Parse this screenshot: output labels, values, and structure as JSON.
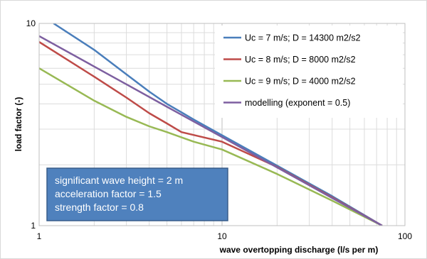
{
  "chart_data": {
    "type": "line",
    "xscale": "log",
    "yscale": "log",
    "xlim": [
      1,
      100
    ],
    "ylim": [
      1,
      10
    ],
    "xlabel": "wave overtopping discharge (l/s per m)",
    "ylabel": "load factor (-)",
    "xticks": [
      "1",
      "10",
      "100"
    ],
    "yticks": [
      "1",
      "10"
    ],
    "grid": true,
    "legend_position": "top-right",
    "series": [
      {
        "name": "Uc = 7 m/s; D = 14300 m2/s2",
        "color": "#4a7ebb",
        "points": [
          [
            1.2,
            10
          ],
          [
            2,
            7.4
          ],
          [
            3,
            5.6
          ],
          [
            4,
            4.6
          ],
          [
            5,
            4.0
          ],
          [
            7,
            3.35
          ],
          [
            10,
            2.8
          ],
          [
            20,
            1.98
          ],
          [
            40,
            1.4
          ],
          [
            75,
            1.0
          ]
        ]
      },
      {
        "name": "Uc = 8 m/s; D = 8000 m2/s2",
        "color": "#be4b48",
        "points": [
          [
            1,
            8.1
          ],
          [
            2,
            5.45
          ],
          [
            3,
            4.3
          ],
          [
            4,
            3.6
          ],
          [
            5,
            3.2
          ],
          [
            6,
            2.9
          ],
          [
            10,
            2.6
          ],
          [
            20,
            1.95
          ],
          [
            40,
            1.38
          ],
          [
            75,
            1.0
          ]
        ]
      },
      {
        "name": "Uc = 9 m/s; D = 4000 m2/s2",
        "color": "#98b954",
        "points": [
          [
            1,
            6.0
          ],
          [
            2,
            4.15
          ],
          [
            3,
            3.45
          ],
          [
            4,
            3.1
          ],
          [
            5,
            2.9
          ],
          [
            7,
            2.6
          ],
          [
            10,
            2.38
          ],
          [
            20,
            1.8
          ],
          [
            40,
            1.33
          ],
          [
            75,
            1.0
          ]
        ]
      },
      {
        "name": "modelling (exponent = 0.5)",
        "color": "#7d5fa0",
        "points": [
          [
            1,
            8.66
          ],
          [
            2,
            6.12
          ],
          [
            3,
            5.0
          ],
          [
            5,
            3.87
          ],
          [
            10,
            2.74
          ],
          [
            20,
            1.94
          ],
          [
            40,
            1.37
          ],
          [
            75,
            1.0
          ]
        ]
      }
    ],
    "annotation": {
      "lines": [
        "significant wave height = 2 m",
        "acceleration factor = 1.5",
        "strength factor = 0.8"
      ],
      "background": "#4f81bd",
      "border": "#385d8a"
    }
  }
}
